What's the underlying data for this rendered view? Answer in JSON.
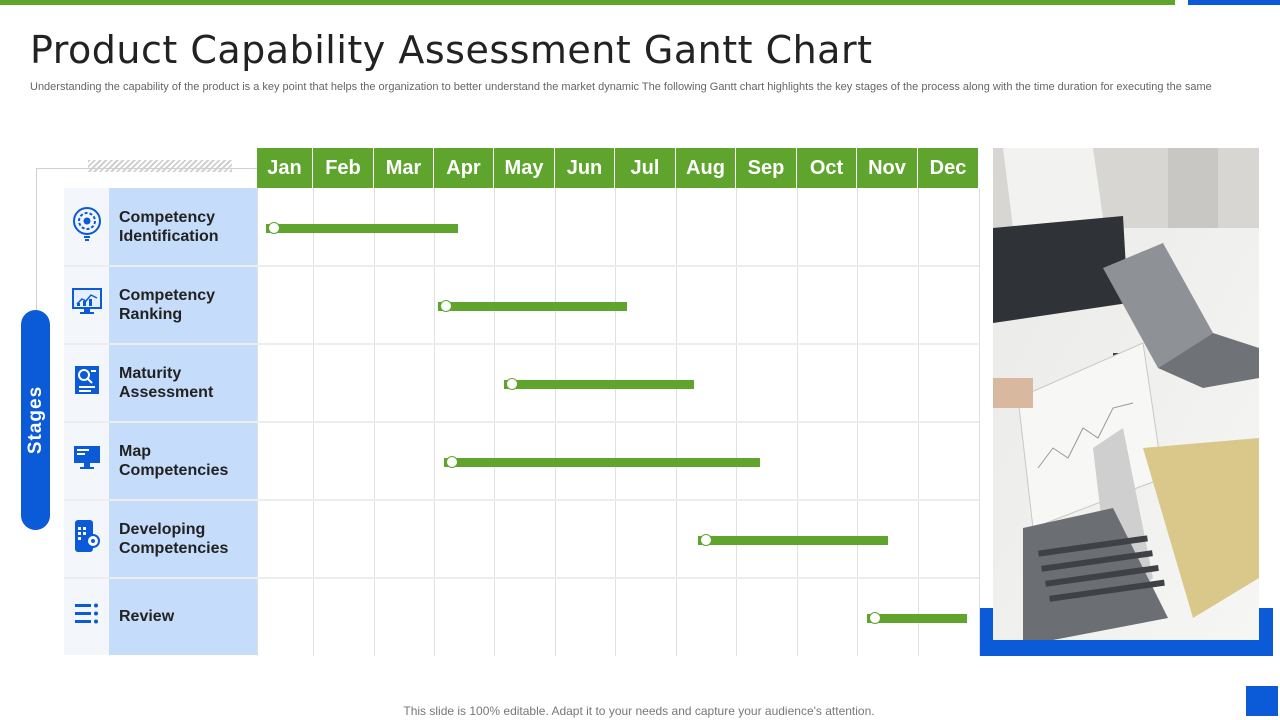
{
  "title": "Product Capability Assessment Gantt Chart",
  "subtitle": "Understanding the capability of the product is a key point that helps the organization to better understand the market dynamic The following Gantt chart highlights the key stages of the process along with the time duration for executing the same",
  "stages_label": "Stages",
  "footer": "This slide is 100% editable. Adapt it to your needs and capture your audience's attention.",
  "colors": {
    "green": "#5fa52d",
    "blue": "#0b5ad7",
    "light_blue": "#c5ddfa"
  },
  "chart_data": {
    "type": "gantt",
    "months": [
      "Jan",
      "Feb",
      "Mar",
      "Apr",
      "May",
      "Jun",
      "Jul",
      "Aug",
      "Sep",
      "Oct",
      "Nov",
      "Dec"
    ],
    "tasks": [
      {
        "label": "Competency Identification",
        "icon": "target-gear-icon",
        "start": 1.3,
        "end": 4.4
      },
      {
        "label": "Competency Ranking",
        "icon": "monitor-chart-icon",
        "start": 4.2,
        "end": 7.2
      },
      {
        "label": "Maturity Assessment",
        "icon": "document-search-icon",
        "start": 5.3,
        "end": 8.3
      },
      {
        "label": "Map Competencies",
        "icon": "desktop-icon",
        "start": 4.3,
        "end": 9.4
      },
      {
        "label": "Developing Competencies",
        "icon": "mobile-settings-icon",
        "start": 8.5,
        "end": 11.5
      },
      {
        "label": "Review",
        "icon": "list-icon",
        "start": 11.3,
        "end": 12.8
      }
    ]
  }
}
